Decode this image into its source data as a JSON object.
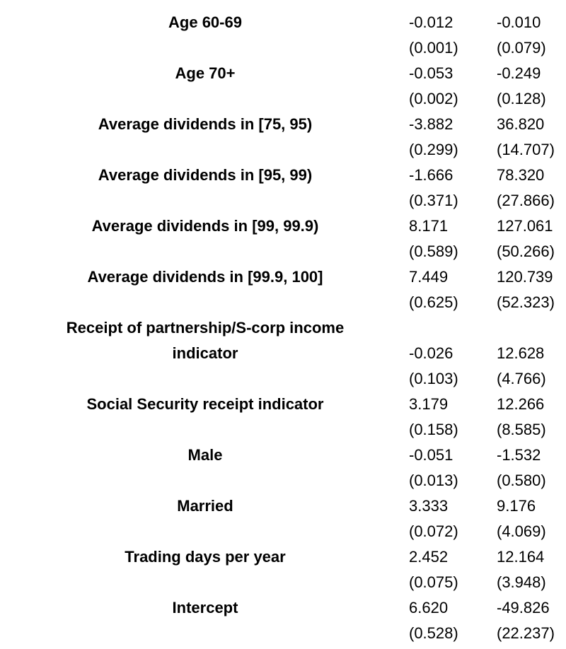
{
  "rows": [
    {
      "label": "Age 60-69",
      "col1": "-0.012",
      "col2": "-0.010",
      "se1": "(0.001)",
      "se2": "(0.079)"
    },
    {
      "label": "Age 70+",
      "col1": "-0.053",
      "col2": "-0.249",
      "se1": "(0.002)",
      "se2": "(0.128)"
    },
    {
      "label": "Average dividends in [75, 95)",
      "col1": "-3.882",
      "col2": "36.820",
      "se1": "(0.299)",
      "se2": "(14.707)"
    },
    {
      "label": "Average dividends in [95, 99)",
      "col1": "-1.666",
      "col2": "78.320",
      "se1": "(0.371)",
      "se2": "(27.866)"
    },
    {
      "label": "Average dividends in [99, 99.9)",
      "col1": "8.171",
      "col2": "127.061",
      "se1": "(0.589)",
      "se2": "(50.266)"
    },
    {
      "label": "Average dividends in [99.9, 100]",
      "col1": "7.449",
      "col2": "120.739",
      "se1": "(0.625)",
      "se2": "(52.323)"
    },
    {
      "label_line1": "Receipt of partnership/S-corp income",
      "label": "indicator",
      "col1": "-0.026",
      "col2": "12.628",
      "se1": "(0.103)",
      "se2": "(4.766)"
    },
    {
      "label": "Social Security receipt indicator",
      "col1": "3.179",
      "col2": "12.266",
      "se1": "(0.158)",
      "se2": "(8.585)"
    },
    {
      "label": "Male",
      "col1": "-0.051",
      "col2": "-1.532",
      "se1": "(0.013)",
      "se2": "(0.580)"
    },
    {
      "label": "Married",
      "col1": "3.333",
      "col2": "9.176",
      "se1": "(0.072)",
      "se2": "(4.069)"
    },
    {
      "label": "Trading days per year",
      "col1": "2.452",
      "col2": "12.164",
      "se1": "(0.075)",
      "se2": "(3.948)"
    },
    {
      "label": "Intercept",
      "col1": "6.620",
      "col2": "-49.826",
      "se1": "(0.528)",
      "se2": "(22.237)"
    }
  ]
}
